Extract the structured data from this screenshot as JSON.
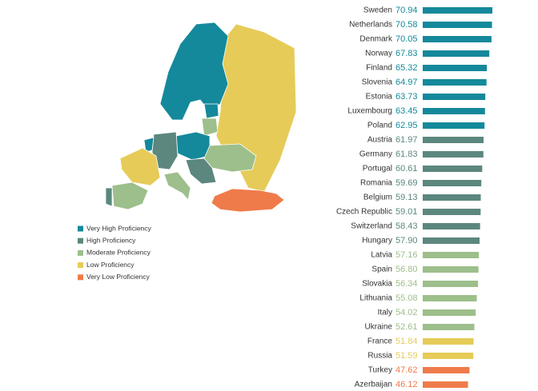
{
  "chart_data": {
    "type": "bar",
    "categories": [
      "Sweden",
      "Netherlands",
      "Denmark",
      "Norway",
      "Finland",
      "Slovenia",
      "Estonia",
      "Luxembourg",
      "Poland",
      "Austria",
      "Germany",
      "Portugal",
      "Romania",
      "Belgium",
      "Czech Republic",
      "Switzerland",
      "Hungary",
      "Latvia",
      "Spain",
      "Slovakia",
      "Lithuania",
      "Italy",
      "Ukraine",
      "France",
      "Russia",
      "Turkey",
      "Azerbaijan"
    ],
    "series": [
      {
        "name": "Very High Proficiency",
        "color": "#14899b",
        "values": [
          70.94,
          70.58,
          70.05,
          67.83,
          65.32,
          64.97,
          63.73,
          63.45,
          62.95,
          null,
          null,
          null,
          null,
          null,
          null,
          null,
          null,
          null,
          null,
          null,
          null,
          null,
          null,
          null,
          null,
          null,
          null
        ],
        "value_labels": [
          "70.94",
          "70.58",
          "70.05",
          "67.83",
          "65.32",
          "64.97",
          "63.73",
          "63.45",
          "62.95",
          null,
          null,
          null,
          null,
          null,
          null,
          null,
          null,
          null,
          null,
          null,
          null,
          null,
          null,
          null,
          null,
          null,
          null
        ]
      },
      {
        "name": "High Proficiency",
        "color": "#5b877f",
        "values": [
          null,
          null,
          null,
          null,
          null,
          null,
          null,
          null,
          null,
          61.97,
          61.83,
          60.61,
          59.69,
          59.13,
          59.01,
          58.43,
          57.9,
          null,
          null,
          null,
          null,
          null,
          null,
          null,
          null,
          null,
          null
        ],
        "value_labels": [
          null,
          null,
          null,
          null,
          null,
          null,
          null,
          null,
          null,
          "61.97",
          "61.83",
          "60.61",
          "59.69",
          "59.13",
          "59.01",
          "58.43",
          "57.90",
          null,
          null,
          null,
          null,
          null,
          null,
          null,
          null,
          null,
          null
        ]
      },
      {
        "name": "Moderate Proficiency",
        "color": "#9dbf8b",
        "values": [
          null,
          null,
          null,
          null,
          null,
          null,
          null,
          null,
          null,
          null,
          null,
          null,
          null,
          null,
          null,
          null,
          null,
          57.16,
          56.8,
          56.34,
          55.08,
          54.02,
          52.61,
          null,
          null,
          null,
          null
        ],
        "value_labels": [
          null,
          null,
          null,
          null,
          null,
          null,
          null,
          null,
          null,
          null,
          null,
          null,
          null,
          null,
          null,
          null,
          null,
          "57.16",
          "56.80",
          "56.34",
          "55.08",
          "54.02",
          "52.61",
          null,
          null,
          null,
          null
        ]
      },
      {
        "name": "Low Proficiency",
        "color": "#e6cb58",
        "values": [
          null,
          null,
          null,
          null,
          null,
          null,
          null,
          null,
          null,
          null,
          null,
          null,
          null,
          null,
          null,
          null,
          null,
          null,
          null,
          null,
          null,
          null,
          null,
          51.84,
          51.59,
          null,
          null
        ],
        "value_labels": [
          null,
          null,
          null,
          null,
          null,
          null,
          null,
          null,
          null,
          null,
          null,
          null,
          null,
          null,
          null,
          null,
          null,
          null,
          null,
          null,
          null,
          null,
          null,
          "51.84",
          "51.59",
          null,
          null
        ]
      },
      {
        "name": "Very Low Proficiency",
        "color": "#ef7b4a",
        "values": [
          null,
          null,
          null,
          null,
          null,
          null,
          null,
          null,
          null,
          null,
          null,
          null,
          null,
          null,
          null,
          null,
          null,
          null,
          null,
          null,
          null,
          null,
          null,
          null,
          null,
          47.62,
          46.12
        ],
        "value_labels": [
          null,
          null,
          null,
          null,
          null,
          null,
          null,
          null,
          null,
          null,
          null,
          null,
          null,
          null,
          null,
          null,
          null,
          null,
          null,
          null,
          null,
          null,
          null,
          null,
          null,
          "47.62",
          "46.12"
        ]
      }
    ]
  }
}
